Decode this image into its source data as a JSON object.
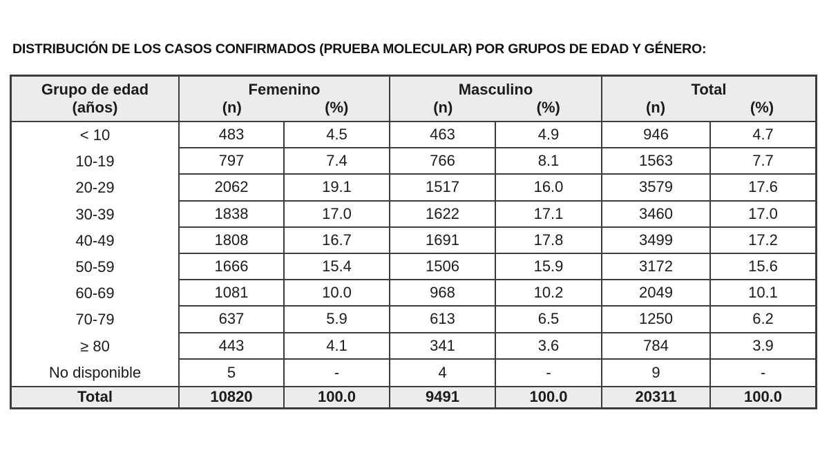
{
  "title": "DISTRIBUCIÓN DE LOS CASOS CONFIRMADOS (PRUEBA MOLECULAR) POR GRUPOS DE EDAD Y GÉNERO:",
  "colors": {
    "page_bg": "#ffffff",
    "header_bg": "#ececec",
    "border": "#3c3c3c",
    "text": "#1b1b1b"
  },
  "table": {
    "col1_header": {
      "line1": "Grupo de edad",
      "line2": "(años)"
    },
    "groups": [
      {
        "label": "Femenino",
        "sub_n": "(n)",
        "sub_pct": "(%)"
      },
      {
        "label": "Masculino",
        "sub_n": "(n)",
        "sub_pct": "(%)"
      },
      {
        "label": "Total",
        "sub_n": "(n)",
        "sub_pct": "(%)"
      }
    ],
    "rows": [
      {
        "age": "< 10",
        "cells": [
          "483",
          "4.5",
          "463",
          "4.9",
          "946",
          "4.7"
        ]
      },
      {
        "age": "10-19",
        "cells": [
          "797",
          "7.4",
          "766",
          "8.1",
          "1563",
          "7.7"
        ]
      },
      {
        "age": "20-29",
        "cells": [
          "2062",
          "19.1",
          "1517",
          "16.0",
          "3579",
          "17.6"
        ]
      },
      {
        "age": "30-39",
        "cells": [
          "1838",
          "17.0",
          "1622",
          "17.1",
          "3460",
          "17.0"
        ]
      },
      {
        "age": "40-49",
        "cells": [
          "1808",
          "16.7",
          "1691",
          "17.8",
          "3499",
          "17.2"
        ]
      },
      {
        "age": "50-59",
        "cells": [
          "1666",
          "15.4",
          "1506",
          "15.9",
          "3172",
          "15.6"
        ]
      },
      {
        "age": "60-69",
        "cells": [
          "1081",
          "10.0",
          "968",
          "10.2",
          "2049",
          "10.1"
        ]
      },
      {
        "age": "70-79",
        "cells": [
          "637",
          "5.9",
          "613",
          "6.5",
          "1250",
          "6.2"
        ]
      },
      {
        "age": "≥ 80",
        "cells": [
          "443",
          "4.1",
          "341",
          "3.6",
          "784",
          "3.9"
        ]
      },
      {
        "age": "No disponible",
        "cells": [
          "5",
          "-",
          "4",
          "-",
          "9",
          "-"
        ]
      }
    ],
    "total_row": {
      "age": "Total",
      "cells": [
        "10820",
        "100.0",
        "9491",
        "100.0",
        "20311",
        "100.0"
      ]
    }
  }
}
